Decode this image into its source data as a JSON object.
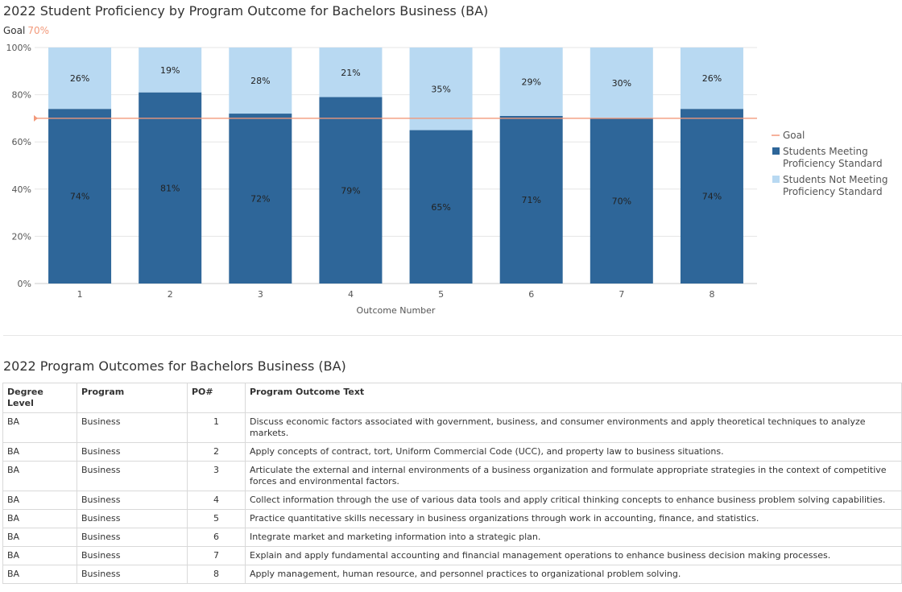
{
  "chart_title": "2022 Student Proficiency by Program Outcome for Bachelors Business (BA)",
  "goal_label": "Goal",
  "goal_value_text": "70%",
  "chart_data": {
    "type": "bar",
    "stacked": true,
    "title": "2022 Student Proficiency by Program Outcome for Bachelors Business (BA)",
    "xlabel": "Outcome Number",
    "ylabel": "",
    "categories": [
      "1",
      "2",
      "3",
      "4",
      "5",
      "6",
      "7",
      "8"
    ],
    "ylim": [
      0,
      100
    ],
    "yticks": [
      "0%",
      "20%",
      "40%",
      "60%",
      "80%",
      "100%"
    ],
    "goal": 70,
    "series": [
      {
        "name": "Students Meeting Proficiency Standard",
        "color": "#2e6699",
        "values": [
          74,
          81,
          72,
          79,
          65,
          71,
          70,
          74
        ],
        "labels": [
          "74%",
          "81%",
          "72%",
          "79%",
          "65%",
          "71%",
          "70%",
          "74%"
        ]
      },
      {
        "name": "Students Not Meeting Proficiency Standard",
        "color": "#b8d9f2",
        "values": [
          26,
          19,
          28,
          21,
          35,
          29,
          30,
          26
        ],
        "labels": [
          "26%",
          "19%",
          "28%",
          "21%",
          "35%",
          "29%",
          "30%",
          "26%"
        ]
      }
    ],
    "legend": {
      "position": "right",
      "goal": "Goal",
      "goal_color": "#f2997a",
      "meeting_lines": [
        "Students Meeting",
        "Proficiency Standard"
      ],
      "not_meeting_lines": [
        "Students Not Meeting",
        "Proficiency Standard"
      ]
    },
    "grid": true
  },
  "table": {
    "title": "2022 Program Outcomes for Bachelors Business (BA)",
    "headers": [
      "Degree Level",
      "Program",
      "PO#",
      "Program Outcome Text"
    ],
    "rows": [
      [
        "BA",
        "Business",
        "1",
        "Discuss economic factors associated with government, business, and consumer environments and apply theoretical techniques to analyze markets."
      ],
      [
        "BA",
        "Business",
        "2",
        "Apply concepts of contract, tort, Uniform Commercial Code (UCC), and property law to business situations."
      ],
      [
        "BA",
        "Business",
        "3",
        "Articulate the external and internal environments of a business organization and formulate appropriate strategies in the context of competitive forces and environmental factors."
      ],
      [
        "BA",
        "Business",
        "4",
        "Collect information through the use of various data tools and apply critical thinking concepts to enhance business problem solving capabilities."
      ],
      [
        "BA",
        "Business",
        "5",
        "Practice quantitative skills necessary in business organizations through work in accounting, finance, and statistics."
      ],
      [
        "BA",
        "Business",
        "6",
        "Integrate market and marketing information into a strategic plan."
      ],
      [
        "BA",
        "Business",
        "7",
        "Explain and apply fundamental accounting and financial management operations to enhance business decision making processes."
      ],
      [
        "BA",
        "Business",
        "8",
        "Apply management, human resource, and personnel practices to organizational problem solving."
      ]
    ]
  }
}
